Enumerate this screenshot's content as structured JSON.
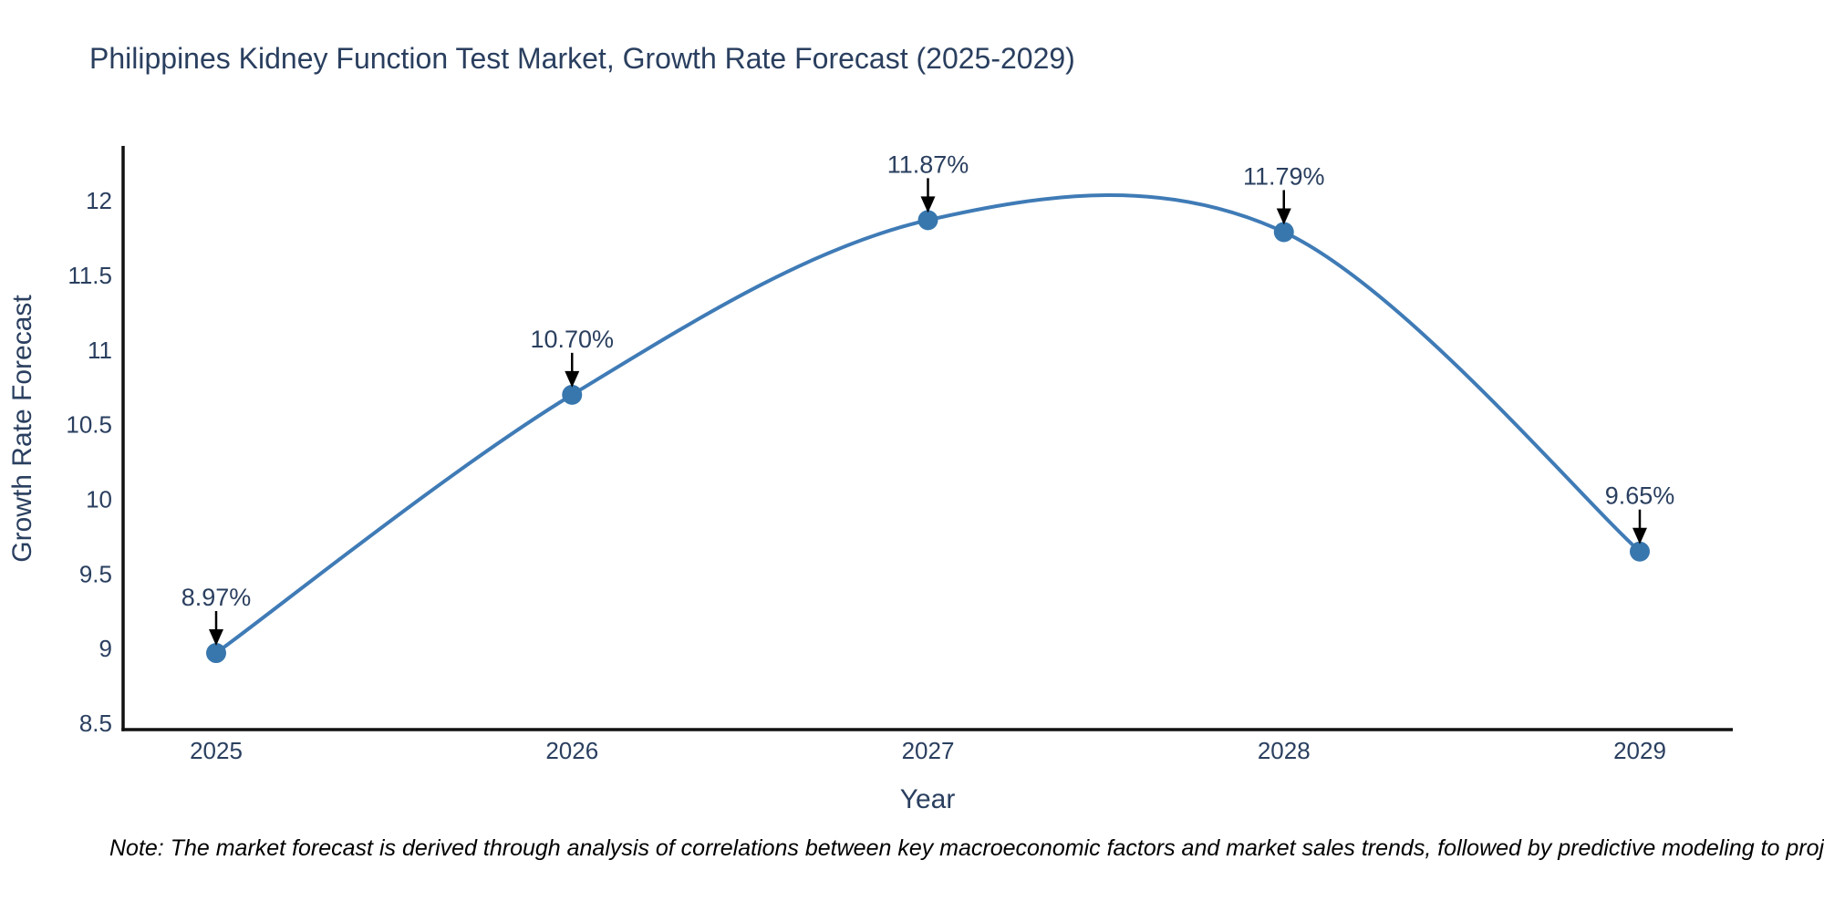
{
  "chart": {
    "title": "Philippines Kidney Function Test Market, Growth Rate Forecast (2025-2029)",
    "xlabel": "Year",
    "ylabel": "Growth Rate Forecast",
    "note": "Note: The market forecast is derived through analysis of correlations between key macroeconomic factors and market sales trends, followed by predictive modeling to project future sales"
  },
  "chart_data": {
    "type": "line",
    "line_shape": "spline",
    "title": "Philippines Kidney Function Test Market, Growth Rate Forecast (2025-2029)",
    "xlabel": "Year",
    "ylabel": "Growth Rate Forecast",
    "x": [
      "2025",
      "2026",
      "2027",
      "2028",
      "2029"
    ],
    "series": [
      {
        "name": "Growth Rate Forecast",
        "values": [
          8.97,
          10.7,
          11.87,
          11.79,
          9.65
        ]
      }
    ],
    "point_labels": [
      "8.97%",
      "10.70%",
      "11.87%",
      "11.79%",
      "9.65%"
    ],
    "yticks": [
      8.5,
      9,
      9.5,
      10,
      10.5,
      11,
      11.5,
      12
    ],
    "ylim": [
      8.457,
      12.367
    ],
    "grid": false,
    "legend": false,
    "annotations_arrow": "down",
    "colors": {
      "line": "#3f7bb6",
      "marker": "#3877ae",
      "text": "#2a3f5f",
      "axis": "#111111",
      "annotation": "#000000"
    }
  }
}
